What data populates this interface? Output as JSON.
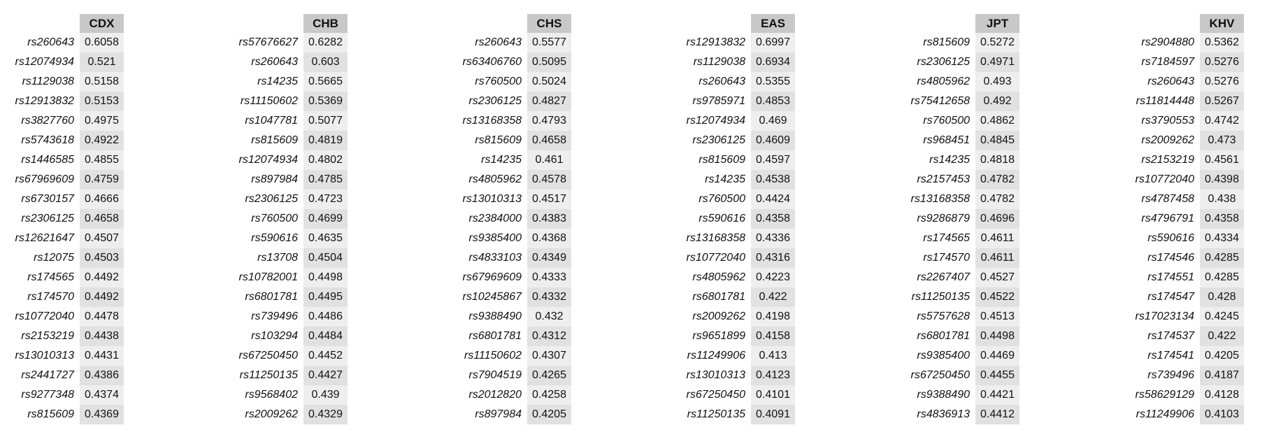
{
  "panels": [
    {
      "population": "CDX",
      "rows": [
        {
          "snp": "rs260643",
          "value": "0.6058"
        },
        {
          "snp": "rs12074934",
          "value": "0.521"
        },
        {
          "snp": "rs1129038",
          "value": "0.5158"
        },
        {
          "snp": "rs12913832",
          "value": "0.5153"
        },
        {
          "snp": "rs3827760",
          "value": "0.4975"
        },
        {
          "snp": "rs5743618",
          "value": "0.4922"
        },
        {
          "snp": "rs1446585",
          "value": "0.4855"
        },
        {
          "snp": "rs67969609",
          "value": "0.4759"
        },
        {
          "snp": "rs6730157",
          "value": "0.4666"
        },
        {
          "snp": "rs2306125",
          "value": "0.4658"
        },
        {
          "snp": "rs12621647",
          "value": "0.4507"
        },
        {
          "snp": "rs12075",
          "value": "0.4503"
        },
        {
          "snp": "rs174565",
          "value": "0.4492"
        },
        {
          "snp": "rs174570",
          "value": "0.4492"
        },
        {
          "snp": "rs10772040",
          "value": "0.4478"
        },
        {
          "snp": "rs2153219",
          "value": "0.4438"
        },
        {
          "snp": "rs13010313",
          "value": "0.4431"
        },
        {
          "snp": "rs2441727",
          "value": "0.4386"
        },
        {
          "snp": "rs9277348",
          "value": "0.4374"
        },
        {
          "snp": "rs815609",
          "value": "0.4369"
        }
      ]
    },
    {
      "population": "CHB",
      "rows": [
        {
          "snp": "rs57676627",
          "value": "0.6282"
        },
        {
          "snp": "rs260643",
          "value": "0.603"
        },
        {
          "snp": "rs14235",
          "value": "0.5665"
        },
        {
          "snp": "rs11150602",
          "value": "0.5369"
        },
        {
          "snp": "rs1047781",
          "value": "0.5077"
        },
        {
          "snp": "rs815609",
          "value": "0.4819"
        },
        {
          "snp": "rs12074934",
          "value": "0.4802"
        },
        {
          "snp": "rs897984",
          "value": "0.4785"
        },
        {
          "snp": "rs2306125",
          "value": "0.4723"
        },
        {
          "snp": "rs760500",
          "value": "0.4699"
        },
        {
          "snp": "rs590616",
          "value": "0.4635"
        },
        {
          "snp": "rs13708",
          "value": "0.4504"
        },
        {
          "snp": "rs10782001",
          "value": "0.4498"
        },
        {
          "snp": "rs6801781",
          "value": "0.4495"
        },
        {
          "snp": "rs739496",
          "value": "0.4486"
        },
        {
          "snp": "rs103294",
          "value": "0.4484"
        },
        {
          "snp": "rs67250450",
          "value": "0.4452"
        },
        {
          "snp": "rs11250135",
          "value": "0.4427"
        },
        {
          "snp": "rs9568402",
          "value": "0.439"
        },
        {
          "snp": "rs2009262",
          "value": "0.4329"
        }
      ]
    },
    {
      "population": "CHS",
      "rows": [
        {
          "snp": "rs260643",
          "value": "0.5577"
        },
        {
          "snp": "rs63406760",
          "value": "0.5095"
        },
        {
          "snp": "rs760500",
          "value": "0.5024"
        },
        {
          "snp": "rs2306125",
          "value": "0.4827"
        },
        {
          "snp": "rs13168358",
          "value": "0.4793"
        },
        {
          "snp": "rs815609",
          "value": "0.4658"
        },
        {
          "snp": "rs14235",
          "value": "0.461"
        },
        {
          "snp": "rs4805962",
          "value": "0.4578"
        },
        {
          "snp": "rs13010313",
          "value": "0.4517"
        },
        {
          "snp": "rs2384000",
          "value": "0.4383"
        },
        {
          "snp": "rs9385400",
          "value": "0.4368"
        },
        {
          "snp": "rs4833103",
          "value": "0.4349"
        },
        {
          "snp": "rs67969609",
          "value": "0.4333"
        },
        {
          "snp": "rs10245867",
          "value": "0.4332"
        },
        {
          "snp": "rs9388490",
          "value": "0.432"
        },
        {
          "snp": "rs6801781",
          "value": "0.4312"
        },
        {
          "snp": "rs11150602",
          "value": "0.4307"
        },
        {
          "snp": "rs7904519",
          "value": "0.4265"
        },
        {
          "snp": "rs2012820",
          "value": "0.4258"
        },
        {
          "snp": "rs897984",
          "value": "0.4205"
        }
      ]
    },
    {
      "population": "EAS",
      "rows": [
        {
          "snp": "rs12913832",
          "value": "0.6997"
        },
        {
          "snp": "rs1129038",
          "value": "0.6934"
        },
        {
          "snp": "rs260643",
          "value": "0.5355"
        },
        {
          "snp": "rs9785971",
          "value": "0.4853"
        },
        {
          "snp": "rs12074934",
          "value": "0.469"
        },
        {
          "snp": "rs2306125",
          "value": "0.4609"
        },
        {
          "snp": "rs815609",
          "value": "0.4597"
        },
        {
          "snp": "rs14235",
          "value": "0.4538"
        },
        {
          "snp": "rs760500",
          "value": "0.4424"
        },
        {
          "snp": "rs590616",
          "value": "0.4358"
        },
        {
          "snp": "rs13168358",
          "value": "0.4336"
        },
        {
          "snp": "rs10772040",
          "value": "0.4316"
        },
        {
          "snp": "rs4805962",
          "value": "0.4223"
        },
        {
          "snp": "rs6801781",
          "value": "0.422"
        },
        {
          "snp": "rs2009262",
          "value": "0.4198"
        },
        {
          "snp": "rs9651899",
          "value": "0.4158"
        },
        {
          "snp": "rs11249906",
          "value": "0.413"
        },
        {
          "snp": "rs13010313",
          "value": "0.4123"
        },
        {
          "snp": "rs67250450",
          "value": "0.4101"
        },
        {
          "snp": "rs11250135",
          "value": "0.4091"
        }
      ]
    },
    {
      "population": "JPT",
      "rows": [
        {
          "snp": "rs815609",
          "value": "0.5272"
        },
        {
          "snp": "rs2306125",
          "value": "0.4971"
        },
        {
          "snp": "rs4805962",
          "value": "0.493"
        },
        {
          "snp": "rs75412658",
          "value": "0.492"
        },
        {
          "snp": "rs760500",
          "value": "0.4862"
        },
        {
          "snp": "rs968451",
          "value": "0.4845"
        },
        {
          "snp": "rs14235",
          "value": "0.4818"
        },
        {
          "snp": "rs2157453",
          "value": "0.4782"
        },
        {
          "snp": "rs13168358",
          "value": "0.4782"
        },
        {
          "snp": "rs9286879",
          "value": "0.4696"
        },
        {
          "snp": "rs174565",
          "value": "0.4611"
        },
        {
          "snp": "rs174570",
          "value": "0.4611"
        },
        {
          "snp": "rs2267407",
          "value": "0.4527"
        },
        {
          "snp": "rs11250135",
          "value": "0.4522"
        },
        {
          "snp": "rs5757628",
          "value": "0.4513"
        },
        {
          "snp": "rs6801781",
          "value": "0.4498"
        },
        {
          "snp": "rs9385400",
          "value": "0.4469"
        },
        {
          "snp": "rs67250450",
          "value": "0.4455"
        },
        {
          "snp": "rs9388490",
          "value": "0.4421"
        },
        {
          "snp": "rs4836913",
          "value": "0.4412"
        }
      ]
    },
    {
      "population": "KHV",
      "rows": [
        {
          "snp": "rs2904880",
          "value": "0.5362"
        },
        {
          "snp": "rs7184597",
          "value": "0.5276"
        },
        {
          "snp": "rs260643",
          "value": "0.5276"
        },
        {
          "snp": "rs11814448",
          "value": "0.5267"
        },
        {
          "snp": "rs3790553",
          "value": "0.4742"
        },
        {
          "snp": "rs2009262",
          "value": "0.473"
        },
        {
          "snp": "rs2153219",
          "value": "0.4561"
        },
        {
          "snp": "rs10772040",
          "value": "0.4398"
        },
        {
          "snp": "rs4787458",
          "value": "0.438"
        },
        {
          "snp": "rs4796791",
          "value": "0.4358"
        },
        {
          "snp": "rs590616",
          "value": "0.4334"
        },
        {
          "snp": "rs174546",
          "value": "0.4285"
        },
        {
          "snp": "rs174551",
          "value": "0.4285"
        },
        {
          "snp": "rs174547",
          "value": "0.428"
        },
        {
          "snp": "rs17023134",
          "value": "0.4245"
        },
        {
          "snp": "rs174537",
          "value": "0.422"
        },
        {
          "snp": "rs174541",
          "value": "0.4205"
        },
        {
          "snp": "rs739496",
          "value": "0.4187"
        },
        {
          "snp": "rs58629129",
          "value": "0.4128"
        },
        {
          "snp": "rs11249906",
          "value": "0.4103"
        }
      ]
    }
  ],
  "colors": {
    "header_bg": "#c8c8c8",
    "value_bg_light": "#eeeeee",
    "value_bg_dark": "#e1e1e1"
  }
}
